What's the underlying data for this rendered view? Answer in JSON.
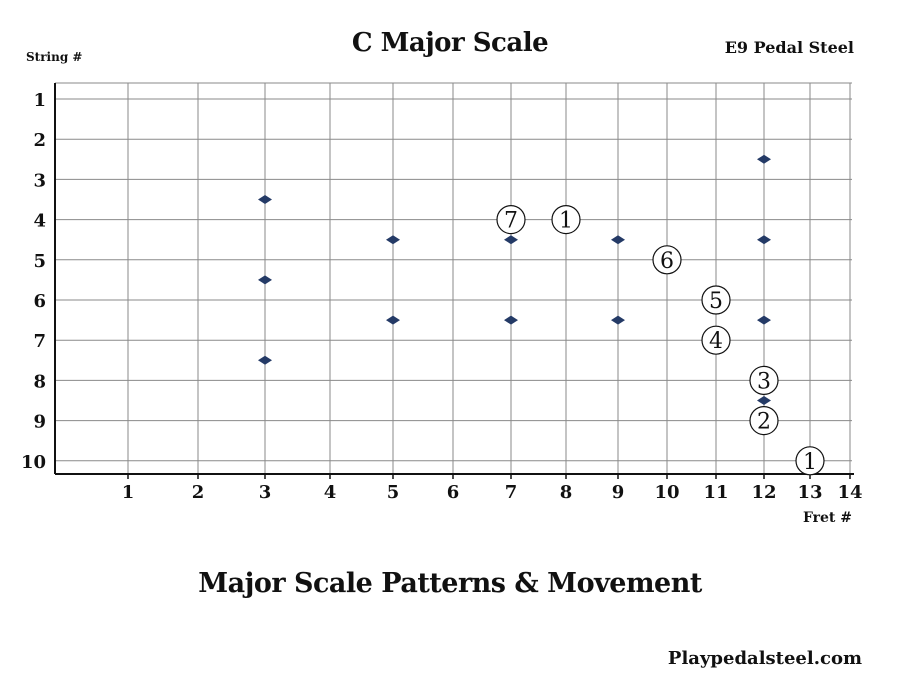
{
  "header": {
    "title": "C Major Scale",
    "instrument": "E9 Pedal Steel",
    "string_label": "String #"
  },
  "footer": {
    "title": "Major Scale Patterns & Movement",
    "site": "Playpedalsteel.com"
  },
  "colors": {
    "grid": "#8a8a8a",
    "axis": "#111111",
    "marker": "#243a66",
    "text": "#111111"
  },
  "chart_data": {
    "type": "scatter",
    "xlabel": "Fret #",
    "ylabel": "String #",
    "x_ticks": [
      1,
      2,
      3,
      4,
      5,
      6,
      7,
      8,
      9,
      10,
      11,
      12,
      13,
      14
    ],
    "y_ticks": [
      1,
      2,
      3,
      4,
      5,
      6,
      7,
      8,
      9,
      10
    ],
    "grid": true,
    "markers": [
      {
        "fret": 3,
        "string": 3.5
      },
      {
        "fret": 3,
        "string": 5.5
      },
      {
        "fret": 3,
        "string": 7.5
      },
      {
        "fret": 5,
        "string": 4.5
      },
      {
        "fret": 5,
        "string": 6.5
      },
      {
        "fret": 7,
        "string": 4.5
      },
      {
        "fret": 7,
        "string": 6.5
      },
      {
        "fret": 9,
        "string": 4.5
      },
      {
        "fret": 9,
        "string": 6.5
      },
      {
        "fret": 12,
        "string": 2.5
      },
      {
        "fret": 12,
        "string": 4.5
      },
      {
        "fret": 12,
        "string": 6.5
      },
      {
        "fret": 12,
        "string": 8.5
      }
    ],
    "scale_degrees": [
      {
        "degree": "7",
        "fret": 7,
        "string": 4
      },
      {
        "degree": "1",
        "fret": 8,
        "string": 4
      },
      {
        "degree": "6",
        "fret": 10,
        "string": 5
      },
      {
        "degree": "5",
        "fret": 11,
        "string": 6
      },
      {
        "degree": "4",
        "fret": 11,
        "string": 7
      },
      {
        "degree": "3",
        "fret": 12,
        "string": 8
      },
      {
        "degree": "2",
        "fret": 12,
        "string": 9
      },
      {
        "degree": "1",
        "fret": 13,
        "string": 10
      }
    ]
  }
}
